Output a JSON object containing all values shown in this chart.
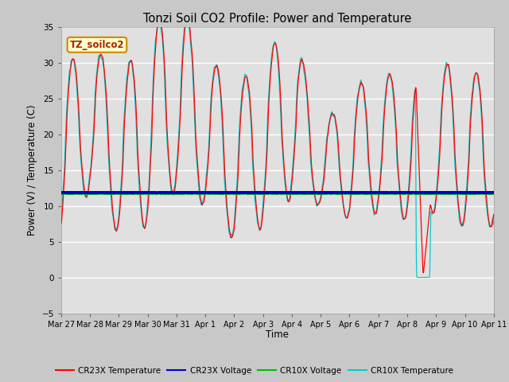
{
  "title": "Tonzi Soil CO2 Profile: Power and Temperature",
  "xlabel": "Time",
  "ylabel": "Power (V) / Temperature (C)",
  "ylim": [
    -5,
    35
  ],
  "yticks": [
    -5,
    0,
    5,
    10,
    15,
    20,
    25,
    30,
    35
  ],
  "plot_bg_color": "#e0e0e0",
  "fig_bg_color": "#c8c8c8",
  "cr23x_temp_color": "#ff0000",
  "cr23x_volt_color": "#0000cc",
  "cr10x_volt_color": "#00bb00",
  "cr10x_temp_color": "#00cccc",
  "cr23x_volt_value": 11.85,
  "cr10x_volt_value": 11.75,
  "annotation_label": "TZ_soilco2",
  "annotation_bg": "#ffffcc",
  "annotation_border": "#cc8800",
  "x_tick_labels": [
    "Mar 27",
    "Mar 28",
    "Mar 29",
    "Mar 30",
    "Mar 31",
    "Apr 1",
    "Apr 2",
    "Apr 3",
    "Apr 4",
    "Apr 5",
    "Apr 6",
    "Apr 7",
    "Apr 8",
    "Apr 9",
    "Apr 10",
    "Apr 11"
  ],
  "legend_entries": [
    "CR23X Temperature",
    "CR23X Voltage",
    "CR10X Voltage",
    "CR10X Temperature"
  ]
}
